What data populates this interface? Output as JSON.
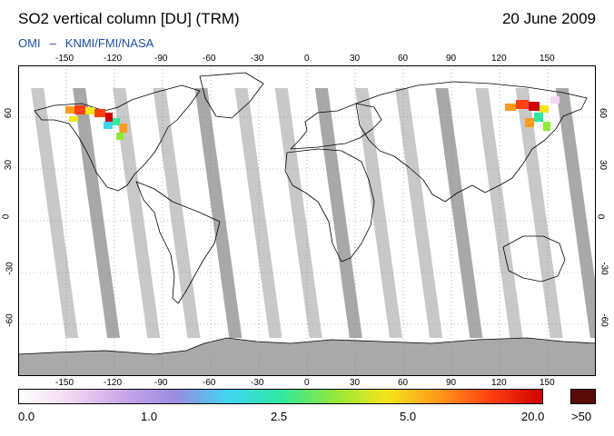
{
  "header": {
    "title": "SO2 vertical column [DU] (TRM)",
    "date": "20 June 2009",
    "source_left": "OMI",
    "source_sep": "–",
    "source_right": "KNMI/FMI/NASA"
  },
  "map": {
    "lon_ticks": [
      "-150",
      "-120",
      "-90",
      "-60",
      "-30",
      "0",
      "30",
      "60",
      "90",
      "120",
      "150"
    ],
    "lat_ticks": [
      "60",
      "30",
      "0",
      "-30",
      "-60"
    ],
    "colors": {
      "background": "#ffffff",
      "land_outline": "#000000",
      "data_gap": "#c8c8c8",
      "data_gap_dark": "#a8a8a8",
      "graticule": "#808080"
    }
  },
  "colorbar": {
    "labels": [
      "0.0",
      "1.0",
      "2.5",
      "5.0",
      "20.0"
    ],
    "overflow_label": ">50",
    "overflow_color": "#5a0a0a",
    "stops": [
      "#ffffff",
      "#f2d7f2",
      "#c8a6e8",
      "#9b8be0",
      "#3fd5f5",
      "#2ee8a0",
      "#8fe83a",
      "#f2e61a",
      "#ff9a1a",
      "#ff4010",
      "#d00000"
    ]
  }
}
